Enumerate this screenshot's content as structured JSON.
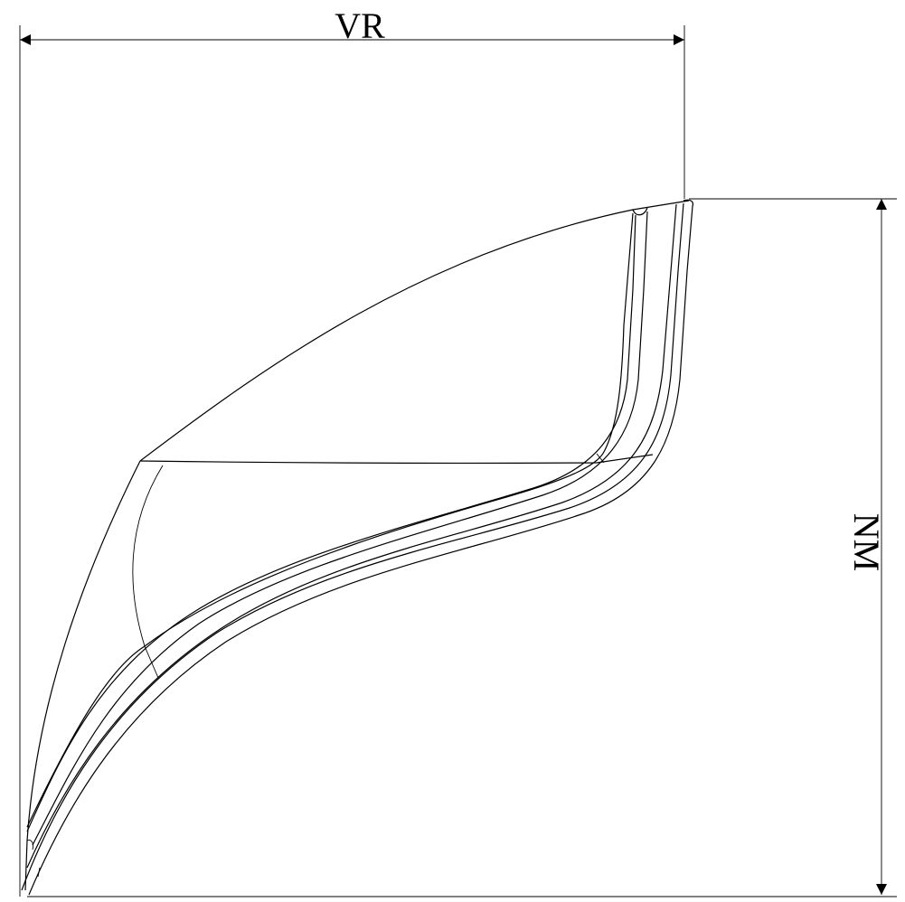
{
  "dimensions": {
    "width_label": "VR",
    "height_label": "NM"
  }
}
